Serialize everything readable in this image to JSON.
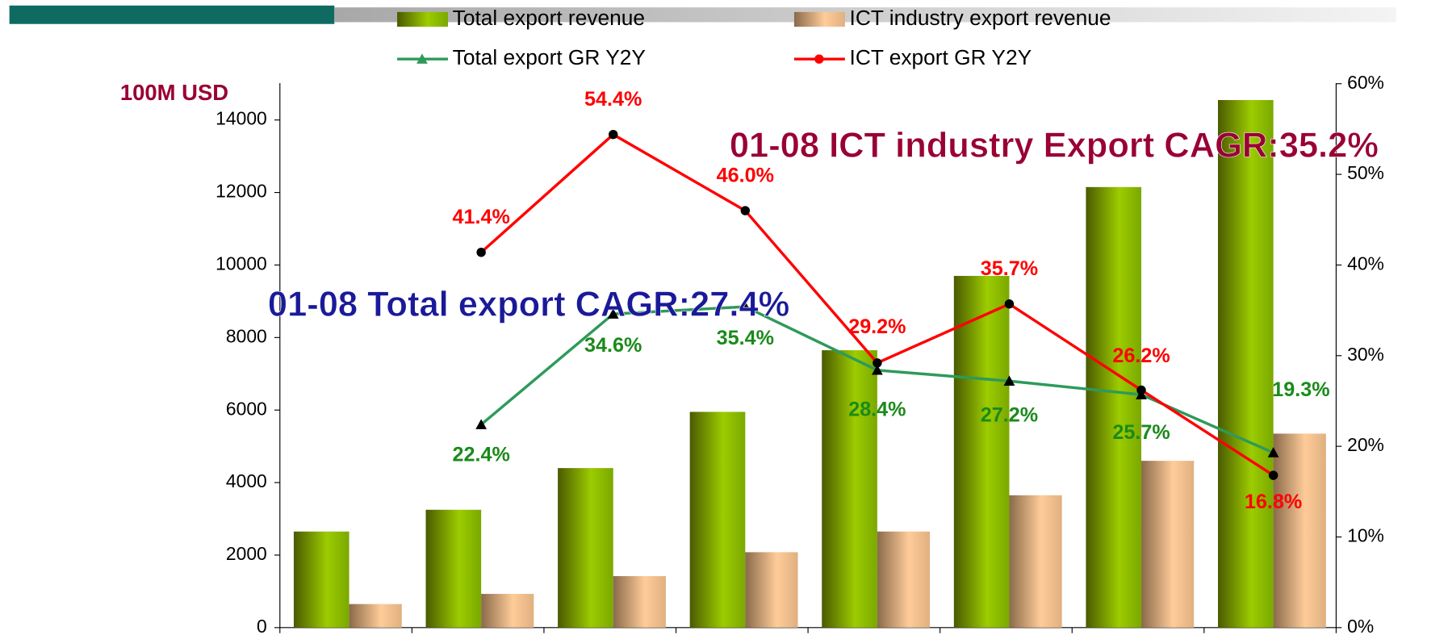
{
  "chart_data": {
    "type": "bar",
    "y_axis_label": "100M USD",
    "annotations": [
      "01-08 ICT industry Export CAGR:35.2%",
      "01-08 Total export  CAGR:27.4%"
    ],
    "series": [
      {
        "name": "Total export revenue",
        "color": "#8cbf00",
        "values": [
          2650,
          3250,
          4400,
          5950,
          7650,
          9700,
          12150,
          14550
        ]
      },
      {
        "name": "ICT industry export revenue",
        "color": "#e8b88a",
        "values": [
          650,
          930,
          1420,
          2080,
          2650,
          3650,
          4600,
          5350
        ]
      },
      {
        "name": "Total export GR Y2Y",
        "type": "line",
        "axis": "y2",
        "color": "#2e9a5a",
        "values": [
          null,
          22.4,
          34.6,
          35.4,
          28.4,
          27.2,
          25.7,
          19.3
        ],
        "value_labels": [
          null,
          "22.4%",
          "34.6%",
          "35.4%",
          "28.4%",
          "27.2%",
          "25.7%",
          "19.3%"
        ]
      },
      {
        "name": "ICT export GR Y2Y",
        "type": "line",
        "axis": "y2",
        "color": "#ff0000",
        "values": [
          null,
          41.4,
          54.4,
          46.0,
          29.2,
          35.7,
          26.2,
          16.8
        ],
        "value_labels": [
          null,
          "41.4%",
          "54.4%",
          "46.0%",
          "29.2%",
          "35.7%",
          "26.2%",
          "16.8%"
        ]
      }
    ],
    "ylim": [
      0,
      15000
    ],
    "yticks": [
      0,
      2000,
      4000,
      6000,
      8000,
      10000,
      12000,
      14000
    ],
    "y2lim": [
      0,
      60
    ],
    "y2ticks": [
      {
        "value": 0,
        "label": "0%"
      },
      {
        "value": 10,
        "label": "10%"
      },
      {
        "value": 20,
        "label": "20%"
      },
      {
        "value": 30,
        "label": "30%"
      },
      {
        "value": 40,
        "label": "40%"
      },
      {
        "value": 50,
        "label": "50%"
      },
      {
        "value": 60,
        "label": "60%"
      }
    ]
  }
}
